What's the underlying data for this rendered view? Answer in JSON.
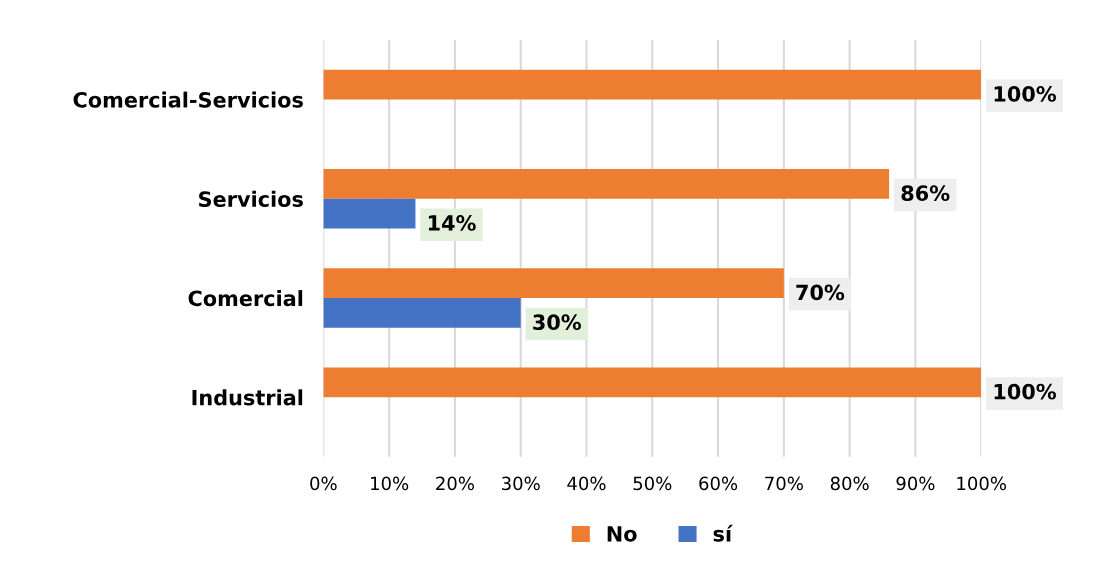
{
  "chart_data": {
    "type": "bar",
    "orientation": "horizontal",
    "categories": [
      "Comercial-Servicios",
      "Servicios",
      "Comercial",
      "Industrial"
    ],
    "series": [
      {
        "name": "No",
        "color": "#ed7d31",
        "values": [
          100,
          86,
          70,
          100
        ],
        "value_labels": [
          "100%",
          "86%",
          "70%",
          "100%"
        ]
      },
      {
        "name": "sí",
        "color": "#4472c4",
        "values": [
          null,
          14,
          30,
          null
        ],
        "value_labels": [
          null,
          "14%",
          "30%",
          null
        ]
      }
    ],
    "xlim": [
      0,
      100
    ],
    "xticks": [
      {
        "value": 0,
        "label": "0%"
      },
      {
        "value": 10,
        "label": "10%"
      },
      {
        "value": 20,
        "label": "20%"
      },
      {
        "value": 30,
        "label": "30%"
      },
      {
        "value": 40,
        "label": "40%"
      },
      {
        "value": 50,
        "label": "50%"
      },
      {
        "value": 60,
        "label": "60%"
      },
      {
        "value": 70,
        "label": "70%"
      },
      {
        "value": 80,
        "label": "80%"
      },
      {
        "value": 90,
        "label": "90%"
      },
      {
        "value": 100,
        "label": "100%"
      }
    ],
    "grid": "x",
    "legend": "bottom"
  }
}
